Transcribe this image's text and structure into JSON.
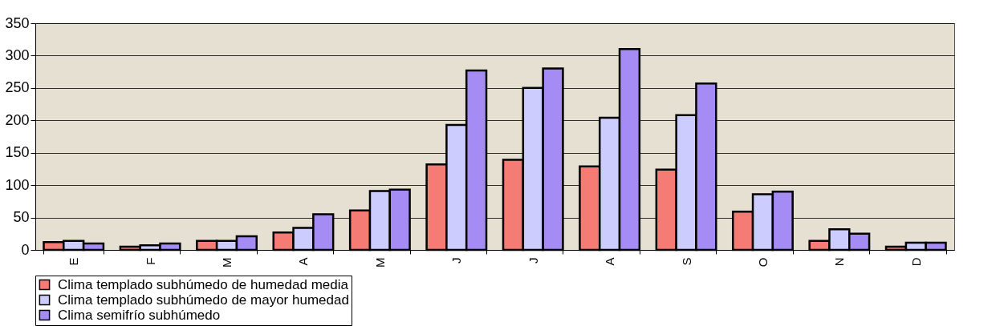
{
  "chart_data": {
    "type": "bar",
    "categories": [
      "E",
      "F",
      "M",
      "A",
      "M",
      "J",
      "J",
      "A",
      "S",
      "O",
      "N",
      "D"
    ],
    "series": [
      {
        "name": "Clima templado subhúmedo de humedad media",
        "color": "#f47c74",
        "values": [
          12,
          5,
          14,
          27,
          61,
          132,
          139,
          129,
          124,
          59,
          14,
          5
        ]
      },
      {
        "name": "Clima templado subhúmedo de mayor humedad",
        "color": "#ccccff",
        "values": [
          14,
          7,
          14,
          34,
          91,
          193,
          250,
          204,
          208,
          86,
          32,
          11
        ]
      },
      {
        "name": "Clima semifrío subhúmedo",
        "color": "#a58cf5",
        "values": [
          10,
          10,
          21,
          55,
          93,
          277,
          280,
          310,
          257,
          90,
          25,
          11
        ]
      }
    ],
    "ylim": [
      0,
      350
    ],
    "yticks": [
      0,
      50,
      100,
      150,
      200,
      250,
      300,
      350
    ],
    "grid": "y",
    "legend": "bottom"
  }
}
